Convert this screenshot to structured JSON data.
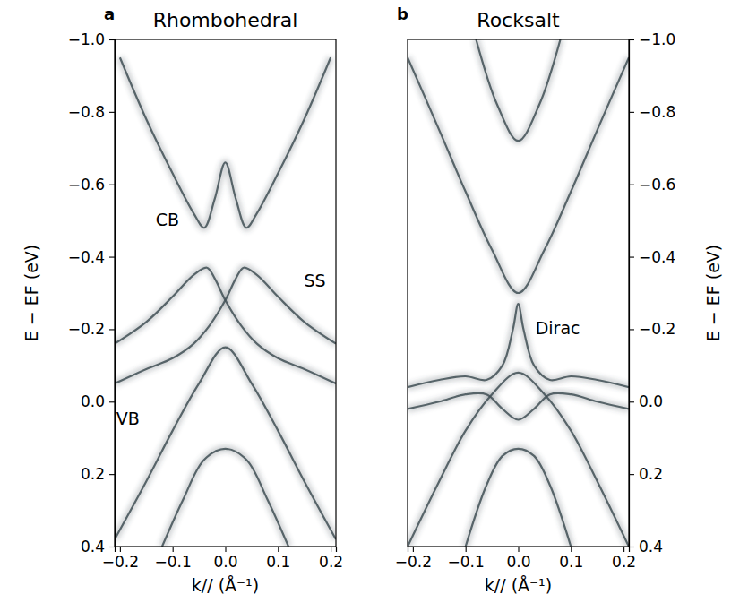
{
  "chart_data": [
    {
      "type": "line",
      "panel_label": "a",
      "title": "Rhombohedral",
      "x_label": "k// (Å⁻¹)",
      "y_label": "E − EF (eV)",
      "color": "#3f4f55",
      "xlim": [
        -0.21,
        0.21
      ],
      "ylim": [
        -1.0,
        0.4
      ],
      "xticks": [
        {
          "value": -0.2,
          "label": "−0.2"
        },
        {
          "value": -0.1,
          "label": "−0.1"
        },
        {
          "value": 0.0,
          "label": "0.0"
        },
        {
          "value": 0.1,
          "label": "0.1"
        },
        {
          "value": 0.2,
          "label": "0.2"
        }
      ],
      "yticks": [
        {
          "value": -1.0,
          "label": "−1.0"
        },
        {
          "value": -0.8,
          "label": "−0.8"
        },
        {
          "value": -0.6,
          "label": "−0.6"
        },
        {
          "value": -0.4,
          "label": "−0.4"
        },
        {
          "value": -0.2,
          "label": "−0.2"
        },
        {
          "value": 0.0,
          "label": "0.0"
        },
        {
          "value": 0.2,
          "label": "0.2"
        },
        {
          "value": 0.4,
          "label": "0.4"
        }
      ],
      "annotations": [
        {
          "text": "CB",
          "x": -0.11,
          "y": -0.5
        },
        {
          "text": "SS",
          "x": 0.17,
          "y": -0.33
        },
        {
          "text": "VB",
          "x": -0.185,
          "y": 0.05
        }
      ],
      "series": [
        {
          "x": [
            -0.2,
            -0.15,
            -0.1,
            -0.06,
            -0.04,
            -0.02,
            0.0,
            0.02,
            0.04,
            0.06,
            0.1,
            0.15,
            0.2
          ],
          "values": [
            -0.95,
            -0.78,
            -0.63,
            -0.52,
            -0.48,
            -0.56,
            -0.66,
            -0.56,
            -0.48,
            -0.52,
            -0.63,
            -0.78,
            -0.95
          ]
        },
        {
          "x": [
            -0.21,
            -0.15,
            -0.1,
            -0.06,
            -0.035,
            -0.02,
            0.0,
            0.03,
            0.06,
            0.1,
            0.15,
            0.21
          ],
          "values": [
            -0.16,
            -0.22,
            -0.29,
            -0.35,
            -0.37,
            -0.34,
            -0.28,
            -0.21,
            -0.16,
            -0.12,
            -0.09,
            -0.05
          ]
        },
        {
          "x": [
            -0.21,
            -0.15,
            -0.1,
            -0.06,
            -0.03,
            0.0,
            0.02,
            0.035,
            0.06,
            0.1,
            0.15,
            0.21
          ],
          "values": [
            -0.05,
            -0.09,
            -0.12,
            -0.16,
            -0.21,
            -0.28,
            -0.34,
            -0.37,
            -0.35,
            -0.29,
            -0.22,
            -0.16
          ]
        },
        {
          "x": [
            -0.21,
            -0.15,
            -0.1,
            -0.05,
            0.0,
            0.05,
            0.1,
            0.15,
            0.21
          ],
          "values": [
            0.38,
            0.22,
            0.08,
            -0.05,
            -0.15,
            -0.05,
            0.08,
            0.22,
            0.38
          ]
        },
        {
          "x": [
            -0.12,
            -0.08,
            -0.04,
            0.0,
            0.04,
            0.08,
            0.12
          ],
          "values": [
            0.4,
            0.27,
            0.16,
            0.13,
            0.16,
            0.27,
            0.4
          ]
        }
      ]
    },
    {
      "type": "line",
      "panel_label": "b",
      "title": "Rocksalt",
      "x_label": "k// (Å⁻¹)",
      "y_label": "E − EF (eV)",
      "color": "#3f4f55",
      "xlim": [
        -0.21,
        0.21
      ],
      "ylim": [
        -1.0,
        0.4
      ],
      "xticks": [
        {
          "value": -0.2,
          "label": "−0.2"
        },
        {
          "value": -0.1,
          "label": "−0.1"
        },
        {
          "value": 0.0,
          "label": "0.0"
        },
        {
          "value": 0.1,
          "label": "0.1"
        },
        {
          "value": 0.2,
          "label": "0.2"
        }
      ],
      "yticks": [
        {
          "value": -1.0,
          "label": "−1.0"
        },
        {
          "value": -0.8,
          "label": "−0.8"
        },
        {
          "value": -0.6,
          "label": "−0.6"
        },
        {
          "value": -0.4,
          "label": "−0.4"
        },
        {
          "value": -0.2,
          "label": "−0.2"
        },
        {
          "value": 0.0,
          "label": "0.0"
        },
        {
          "value": 0.2,
          "label": "0.2"
        },
        {
          "value": 0.4,
          "label": "0.4"
        }
      ],
      "annotations": [
        {
          "text": "Dirac",
          "x": 0.075,
          "y": -0.2
        }
      ],
      "series": [
        {
          "x": [
            -0.21,
            -0.15,
            -0.1,
            -0.05,
            0.0,
            0.05,
            0.1,
            0.15,
            0.21
          ],
          "values": [
            -0.95,
            -0.75,
            -0.58,
            -0.42,
            -0.3,
            -0.42,
            -0.58,
            -0.75,
            -0.95
          ]
        },
        {
          "x": [
            -0.08,
            -0.04,
            0.0,
            0.04,
            0.08
          ],
          "values": [
            -1.0,
            -0.82,
            -0.72,
            -0.82,
            -1.0
          ]
        },
        {
          "x": [
            -0.21,
            -0.15,
            -0.1,
            -0.06,
            -0.03,
            -0.01,
            0.0,
            0.01,
            0.03,
            0.06,
            0.1,
            0.15,
            0.21
          ],
          "values": [
            -0.04,
            -0.06,
            -0.07,
            -0.06,
            -0.1,
            -0.2,
            -0.27,
            -0.2,
            -0.1,
            -0.06,
            -0.07,
            -0.06,
            -0.04
          ]
        },
        {
          "x": [
            -0.21,
            -0.15,
            -0.1,
            -0.06,
            -0.03,
            0.0,
            0.03,
            0.06,
            0.1,
            0.15,
            0.21
          ],
          "values": [
            0.02,
            0.0,
            -0.02,
            -0.02,
            0.02,
            0.05,
            0.02,
            -0.02,
            -0.02,
            0.0,
            0.02
          ]
        },
        {
          "x": [
            -0.21,
            -0.15,
            -0.1,
            -0.05,
            0.0,
            0.05,
            0.1,
            0.15,
            0.21
          ],
          "values": [
            0.4,
            0.22,
            0.08,
            -0.02,
            -0.08,
            -0.02,
            0.08,
            0.22,
            0.4
          ]
        },
        {
          "x": [
            -0.1,
            -0.06,
            -0.03,
            0.0,
            0.03,
            0.06,
            0.1
          ],
          "values": [
            0.4,
            0.23,
            0.15,
            0.13,
            0.15,
            0.23,
            0.4
          ]
        }
      ]
    }
  ]
}
